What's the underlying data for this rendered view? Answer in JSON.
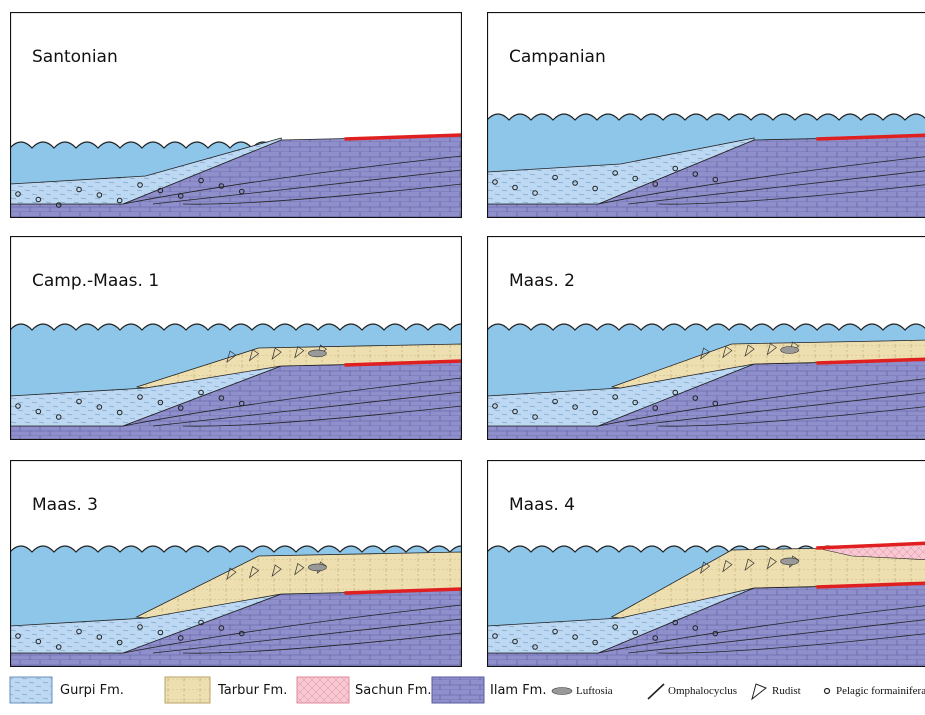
{
  "panels": [
    {
      "title": "Santonian"
    },
    {
      "title": "Campanian"
    },
    {
      "title": "Camp.-Maas. 1"
    },
    {
      "title": "Maas. 2"
    },
    {
      "title": "Maas. 3"
    },
    {
      "title": "Maas. 4"
    }
  ],
  "legend": [
    {
      "label": "Gurpi Fm."
    },
    {
      "label": "Tarbur Fm."
    },
    {
      "label": "Sachun Fm."
    },
    {
      "label": "Ilam Fm."
    },
    {
      "label": "Luftosia"
    },
    {
      "label": "Omphalocyclus"
    },
    {
      "label": "Rudist"
    },
    {
      "label": "Pelagic formainifera"
    }
  ]
}
